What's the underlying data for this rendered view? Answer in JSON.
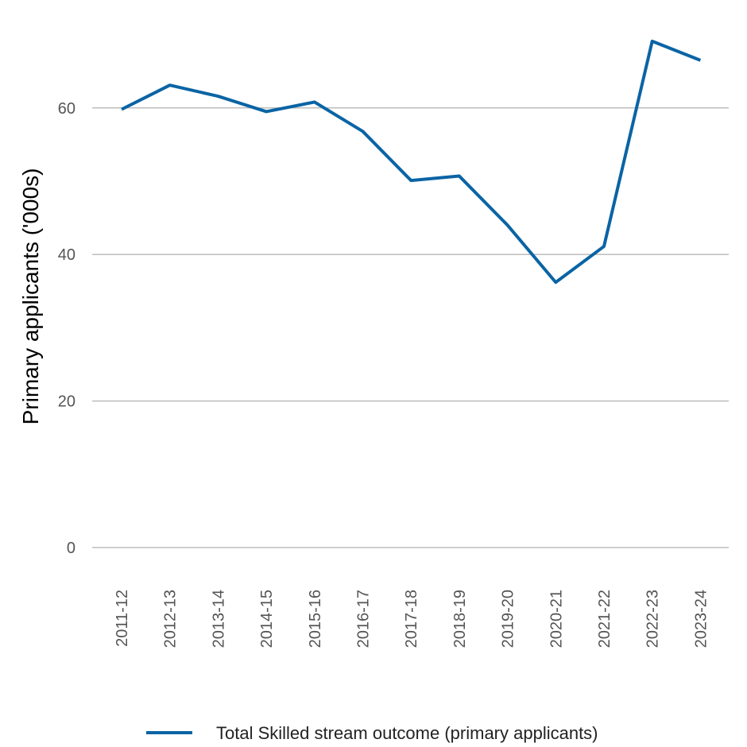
{
  "chart_data": {
    "type": "line",
    "title": "",
    "xlabel": "",
    "ylabel": "Primary applicants ('000s)",
    "categories": [
      "2011-12",
      "2012-13",
      "2013-14",
      "2014-15",
      "2015-16",
      "2016-17",
      "2017-18",
      "2018-19",
      "2019-20",
      "2020-21",
      "2021-22",
      "2022-23",
      "2023-24"
    ],
    "series": [
      {
        "name": "Total Skilled stream outcome (primary applicants)",
        "color": "#0a64a4",
        "values": [
          59.8,
          63.1,
          61.6,
          59.5,
          60.8,
          56.8,
          50.1,
          50.7,
          44.0,
          36.2,
          41.1,
          69.1,
          66.5
        ]
      }
    ],
    "ylim": [
      0,
      70
    ],
    "yticks": [
      "0",
      "20",
      "40",
      "60"
    ],
    "grid": true,
    "legend_position": "bottom"
  }
}
